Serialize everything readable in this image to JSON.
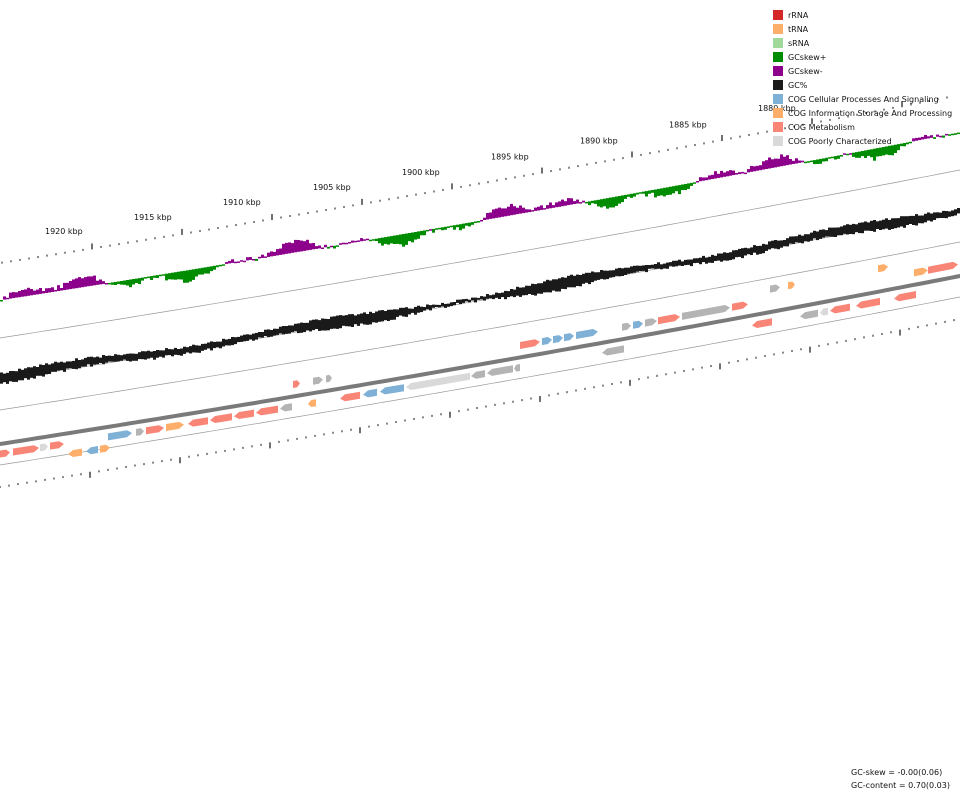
{
  "legend": [
    {
      "label": "rRNA",
      "color": "#d62728"
    },
    {
      "label": "tRNA",
      "color": "#fdae6b"
    },
    {
      "label": "sRNA",
      "color": "#a1d99b"
    },
    {
      "label": "GCskew+",
      "color": "#008c00"
    },
    {
      "label": "GCskew-",
      "color": "#8c008c"
    },
    {
      "label": "GC%",
      "color": "#1a1a1a"
    },
    {
      "label": "COG Cellular Processes And Signaling",
      "color": "#7fb0d6"
    },
    {
      "label": "COG Information Storage And Processing",
      "color": "#fdae6b"
    },
    {
      "label": "COG Metabolism",
      "color": "#f98577"
    },
    {
      "label": "COG Poorly Characterized",
      "color": "#d9d9d9"
    }
  ],
  "axis_labels": [
    "1920 kbp",
    "1915 kbp",
    "1910 kbp",
    "1905 kbp",
    "1900 kbp",
    "1895 kbp",
    "1890 kbp",
    "1885 kbp",
    "1880 kbp"
  ],
  "stats": {
    "gc_skew": "GC-skew = -0.00(0.06)",
    "gc_content": "GC-content = 0.70(0.03)"
  },
  "colors": {
    "backbone": "#7a7a7a",
    "guide": "#999999",
    "tick": "#111111",
    "other_gene": "#b4b4b4"
  }
}
